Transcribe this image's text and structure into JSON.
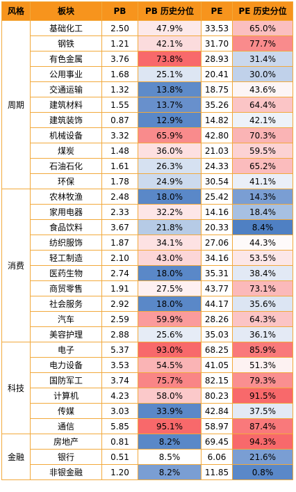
{
  "headers": [
    "风格",
    "板块",
    "PB",
    "PB 历史分位",
    "PE",
    "PE 历史分位"
  ],
  "groups": [
    {
      "style": "周期",
      "rows": [
        {
          "sector": "基础化工",
          "pb": "2.50",
          "pb_pct": "47.9%",
          "pe": "33.53",
          "pe_pct": "65.0%"
        },
        {
          "sector": "钢铁",
          "pb": "1.21",
          "pb_pct": "42.1%",
          "pe": "31.70",
          "pe_pct": "77.7%"
        },
        {
          "sector": "有色金属",
          "pb": "3.76",
          "pb_pct": "73.8%",
          "pe": "28.93",
          "pe_pct": "31.4%"
        },
        {
          "sector": "公用事业",
          "pb": "1.68",
          "pb_pct": "25.1%",
          "pe": "20.41",
          "pe_pct": "30.0%"
        },
        {
          "sector": "交通运输",
          "pb": "1.32",
          "pb_pct": "13.8%",
          "pe": "18.75",
          "pe_pct": "43.6%"
        },
        {
          "sector": "建筑材料",
          "pb": "1.55",
          "pb_pct": "13.7%",
          "pe": "35.26",
          "pe_pct": "64.4%"
        },
        {
          "sector": "建筑装饰",
          "pb": "0.87",
          "pb_pct": "12.9%",
          "pe": "14.82",
          "pe_pct": "42.1%"
        },
        {
          "sector": "机械设备",
          "pb": "3.32",
          "pb_pct": "65.9%",
          "pe": "42.80",
          "pe_pct": "70.3%"
        },
        {
          "sector": "煤炭",
          "pb": "1.48",
          "pb_pct": "36.0%",
          "pe": "21.03",
          "pe_pct": "59.5%"
        },
        {
          "sector": "石油石化",
          "pb": "1.61",
          "pb_pct": "26.3%",
          "pe": "24.33",
          "pe_pct": "65.2%"
        },
        {
          "sector": "环保",
          "pb": "1.78",
          "pb_pct": "24.9%",
          "pe": "30.54",
          "pe_pct": "41.1%"
        }
      ]
    },
    {
      "style": "消费",
      "rows": [
        {
          "sector": "农林牧渔",
          "pb": "2.48",
          "pb_pct": "18.0%",
          "pe": "25.42",
          "pe_pct": "14.3%"
        },
        {
          "sector": "家用电器",
          "pb": "2.33",
          "pb_pct": "32.2%",
          "pe": "14.16",
          "pe_pct": "18.4%"
        },
        {
          "sector": "食品饮料",
          "pb": "3.67",
          "pb_pct": "21.8%",
          "pe": "20.33",
          "pe_pct": "8.4%"
        },
        {
          "sector": "纺织服饰",
          "pb": "1.87",
          "pb_pct": "34.1%",
          "pe": "27.06",
          "pe_pct": "44.3%"
        },
        {
          "sector": "轻工制造",
          "pb": "2.10",
          "pb_pct": "43.0%",
          "pe": "34.16",
          "pe_pct": "53.5%"
        },
        {
          "sector": "医药生物",
          "pb": "2.74",
          "pb_pct": "18.0%",
          "pe": "35.31",
          "pe_pct": "38.4%"
        },
        {
          "sector": "商贸零售",
          "pb": "1.91",
          "pb_pct": "27.5%",
          "pe": "43.77",
          "pe_pct": "73.1%"
        },
        {
          "sector": "社会服务",
          "pb": "2.92",
          "pb_pct": "18.0%",
          "pe": "44.17",
          "pe_pct": "35.6%"
        },
        {
          "sector": "汽车",
          "pb": "2.59",
          "pb_pct": "59.9%",
          "pe": "28.26",
          "pe_pct": "64.3%"
        },
        {
          "sector": "美容护理",
          "pb": "2.88",
          "pb_pct": "25.6%",
          "pe": "35.03",
          "pe_pct": "36.1%"
        }
      ]
    },
    {
      "style": "科技",
      "rows": [
        {
          "sector": "电子",
          "pb": "5.37",
          "pb_pct": "93.0%",
          "pe": "68.25",
          "pe_pct": "85.9%"
        },
        {
          "sector": "电力设备",
          "pb": "3.53",
          "pb_pct": "54.5%",
          "pe": "41.05",
          "pe_pct": "51.3%"
        },
        {
          "sector": "国防军工",
          "pb": "3.74",
          "pb_pct": "75.7%",
          "pe": "82.15",
          "pe_pct": "79.3%"
        },
        {
          "sector": "计算机",
          "pb": "4.23",
          "pb_pct": "58.0%",
          "pe": "80.23",
          "pe_pct": "91.5%"
        },
        {
          "sector": "传媒",
          "pb": "3.03",
          "pb_pct": "33.9%",
          "pe": "42.84",
          "pe_pct": "37.5%"
        },
        {
          "sector": "通信",
          "pb": "5.85",
          "pb_pct": "95.1%",
          "pe": "58.97",
          "pe_pct": "87.4%"
        }
      ]
    },
    {
      "style": "金融",
      "rows": [
        {
          "sector": "房地产",
          "pb": "0.81",
          "pb_pct": "8.2%",
          "pe": "69.45",
          "pe_pct": "94.3%"
        },
        {
          "sector": "银行",
          "pb": "0.51",
          "pb_pct": "8.5%",
          "pe": "6.06",
          "pe_pct": "21.6%"
        },
        {
          "sector": "非银金融",
          "pb": "1.20",
          "pb_pct": "8.2%",
          "pe": "11.85",
          "pe_pct": "0.8%"
        }
      ]
    }
  ],
  "cell_colors": {
    "pb_pct": [
      "#fce9ea",
      "#fbdcdd",
      "#f8696b",
      "#dde6f3",
      "#5e8bc9",
      "#6890cc",
      "#5a88c8",
      "#f98b8c",
      "#fde0e1",
      "#d6e1f1",
      "#ccdaee",
      "#5a88c8",
      "#fde6e7",
      "#b6cbe6",
      "#fde2e3",
      "#fcd6d7",
      "#5a88c8",
      "#fef0f1",
      "#5a88c8",
      "#fa9b9c",
      "#e6ecf6",
      "#f8696b",
      "#fab4b5",
      "#f98586",
      "#fbc9ca",
      "#5a88c8",
      "#f8696b",
      "#5a88c8",
      "#ffffff",
      "#7a9ed3"
    ],
    "pe_pct": [
      "#fbbfc0",
      "#f98b8c",
      "#cad8ed",
      "#c0d1ea",
      "#fcf5f6",
      "#fbc5c6",
      "#edf2f9",
      "#fab4b5",
      "#fcd2d3",
      "#fbbcbd",
      "#eaeff8",
      "#7a9ed3",
      "#a7c0e2",
      "#4f80c3",
      "#fefafa",
      "#fce7e8",
      "#e2e9f5",
      "#fbb9ba",
      "#dce5f3",
      "#fbc4c5",
      "#e4eaf5",
      "#f9797b",
      "#fdf2f2",
      "#fa8f90",
      "#f8696b",
      "#e3eaf5",
      "#f9797b",
      "#f8696b",
      "#7a9ed3",
      "#5a88c8"
    ]
  }
}
